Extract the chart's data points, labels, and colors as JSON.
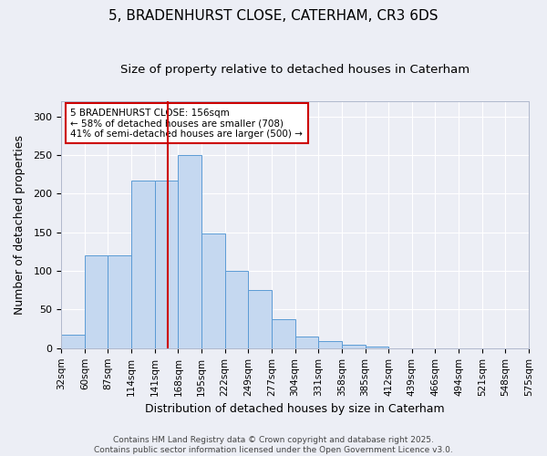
{
  "title_line1": "5, BRADENHURST CLOSE, CATERHAM, CR3 6DS",
  "title_line2": "Size of property relative to detached houses in Caterham",
  "xlabel": "Distribution of detached houses by size in Caterham",
  "ylabel": "Number of detached properties",
  "bin_labels": [
    "32sqm",
    "60sqm",
    "87sqm",
    "114sqm",
    "141sqm",
    "168sqm",
    "195sqm",
    "222sqm",
    "249sqm",
    "277sqm",
    "304sqm",
    "331sqm",
    "358sqm",
    "385sqm",
    "412sqm",
    "439sqm",
    "466sqm",
    "494sqm",
    "521sqm",
    "548sqm",
    "575sqm"
  ],
  "bar_heights": [
    18,
    120,
    120,
    217,
    217,
    250,
    148,
    100,
    75,
    38,
    15,
    9,
    4,
    2,
    0,
    0,
    0,
    0,
    0,
    0
  ],
  "bar_color": "#c5d8f0",
  "bar_edge_color": "#5b9bd5",
  "background_color": "#eceef5",
  "plot_bg_color": "#eceef5",
  "grid_color": "#ffffff",
  "vline_position": 5,
  "vline_color": "#cc0000",
  "annotation_text": "5 BRADENHURST CLOSE: 156sqm\n← 58% of detached houses are smaller (708)\n41% of semi-detached houses are larger (500) →",
  "ylim": [
    0,
    320
  ],
  "yticks": [
    0,
    50,
    100,
    150,
    200,
    250,
    300
  ],
  "footer": "Contains HM Land Registry data © Crown copyright and database right 2025.\nContains public sector information licensed under the Open Government Licence v3.0.",
  "title_fontsize": 11,
  "subtitle_fontsize": 9.5,
  "axis_label_fontsize": 9,
  "tick_fontsize": 7.5,
  "annotation_fontsize": 7.5,
  "footer_fontsize": 6.5
}
